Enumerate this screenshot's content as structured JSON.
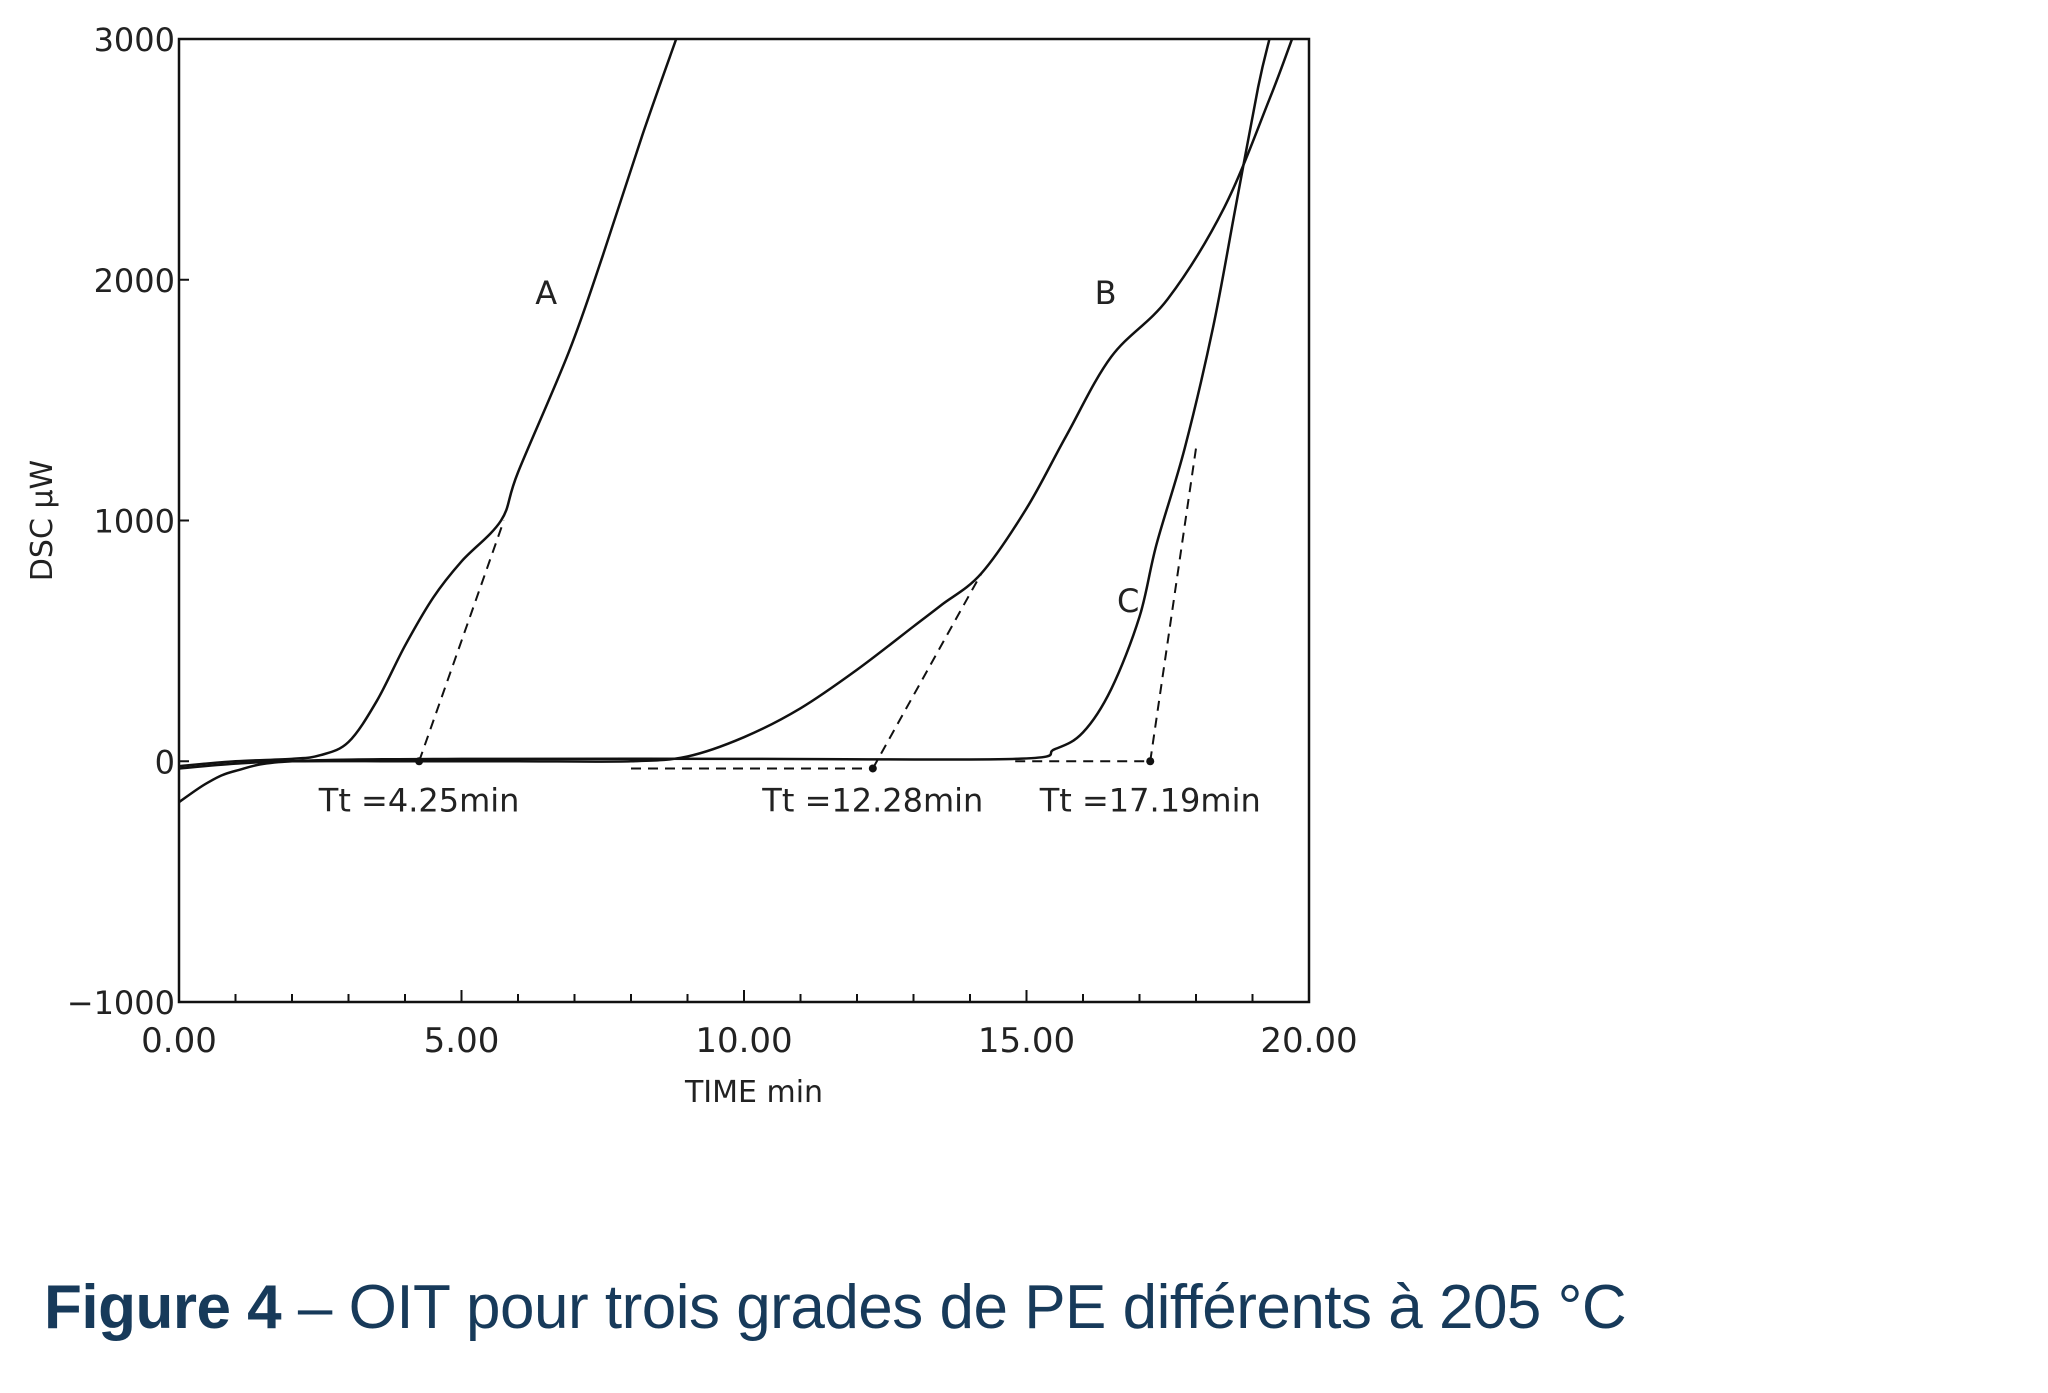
{
  "chart_data": {
    "type": "line",
    "title": "",
    "xlabel": "TIME  min",
    "ylabel": "DSC  µW",
    "xlim": [
      0,
      20
    ],
    "ylim": [
      -1000,
      3000
    ],
    "xticks": [
      "0.00",
      "5.00",
      "10.00",
      "15.00",
      "20.00"
    ],
    "xtick_values": [
      0,
      5,
      10,
      15,
      20
    ],
    "yticks": [
      "−1000",
      "0",
      "1000",
      "2000",
      "3000"
    ],
    "ytick_values": [
      -1000,
      0,
      1000,
      2000,
      3000
    ],
    "grid": false,
    "series": [
      {
        "name": "A",
        "x": [
          0,
          1,
          2,
          2.5,
          3,
          3.5,
          4,
          4.5,
          5,
          5.7,
          6,
          6.9,
          7.5,
          8.2,
          8.8
        ],
        "y": [
          -20,
          0,
          10,
          25,
          80,
          250,
          480,
          680,
          830,
          1000,
          1200,
          1700,
          2100,
          2600,
          3000
        ]
      },
      {
        "name": "B",
        "x": [
          0,
          1,
          2,
          4,
          6,
          8,
          9,
          10,
          11,
          12,
          13,
          13.5,
          14.2,
          15,
          15.7,
          16.5,
          17.5,
          18.5,
          19.3,
          19.7
        ],
        "y": [
          -30,
          -10,
          0,
          0,
          0,
          0,
          20,
          100,
          220,
          380,
          560,
          650,
          780,
          1050,
          1350,
          1680,
          1920,
          2300,
          2750,
          3000
        ]
      },
      {
        "name": "C",
        "x": [
          0,
          0.5,
          1,
          2,
          5,
          10,
          14.8,
          15.5,
          16,
          16.5,
          17,
          17.3,
          17.8,
          18.3,
          18.7,
          19.1,
          19.3
        ],
        "y": [
          -170,
          -90,
          -40,
          0,
          10,
          10,
          10,
          50,
          120,
          300,
          600,
          900,
          1300,
          1800,
          2300,
          2800,
          3000
        ]
      }
    ],
    "onset_tangents": [
      {
        "series": "A",
        "x": [
          4.25,
          5.75
        ],
        "y": [
          0,
          1000
        ],
        "baseline_x": [
          4.25,
          4.25
        ],
        "label": "Tt =4.25min",
        "onset": 4.25
      },
      {
        "series": "B",
        "x": [
          12.28,
          14.2
        ],
        "y": [
          -30,
          780
        ],
        "baseline_x": [
          8,
          12.28
        ],
        "label": "Tt =12.28min",
        "onset": 12.28
      },
      {
        "series": "C",
        "x": [
          17.19,
          18.0
        ],
        "y": [
          0,
          1300
        ],
        "baseline_x": [
          14.8,
          17.19
        ],
        "label": "Tt =17.19min",
        "onset": 17.19
      }
    ],
    "curve_labels": [
      {
        "text": "A",
        "x": 6.5,
        "y": 1900
      },
      {
        "text": "B",
        "x": 16.4,
        "y": 1900
      },
      {
        "text": "C",
        "x": 16.8,
        "y": 620
      }
    ]
  },
  "caption": {
    "bold": "Figure 4",
    "text": " – OIT pour trois grades de PE différents à 205 °C"
  },
  "colors": {
    "line": "#111111",
    "caption": "#173a5a"
  }
}
